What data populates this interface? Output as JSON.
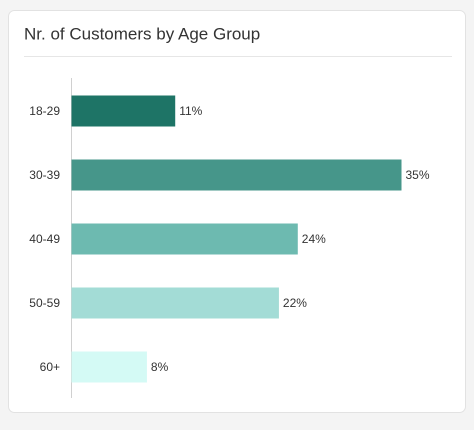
{
  "chart_data": {
    "type": "bar",
    "orientation": "horizontal",
    "title": "Nr. of Customers by Age Group",
    "categories": [
      "18-29",
      "30-39",
      "40-49",
      "50-59",
      "60+"
    ],
    "values": [
      11,
      35,
      24,
      22,
      8
    ],
    "value_labels": [
      "11%",
      "35%",
      "24%",
      "22%",
      "8%"
    ],
    "colors": [
      "#1e7466",
      "#46968a",
      "#6dbab0",
      "#a3dcd6",
      "#d4faf5"
    ]
  }
}
